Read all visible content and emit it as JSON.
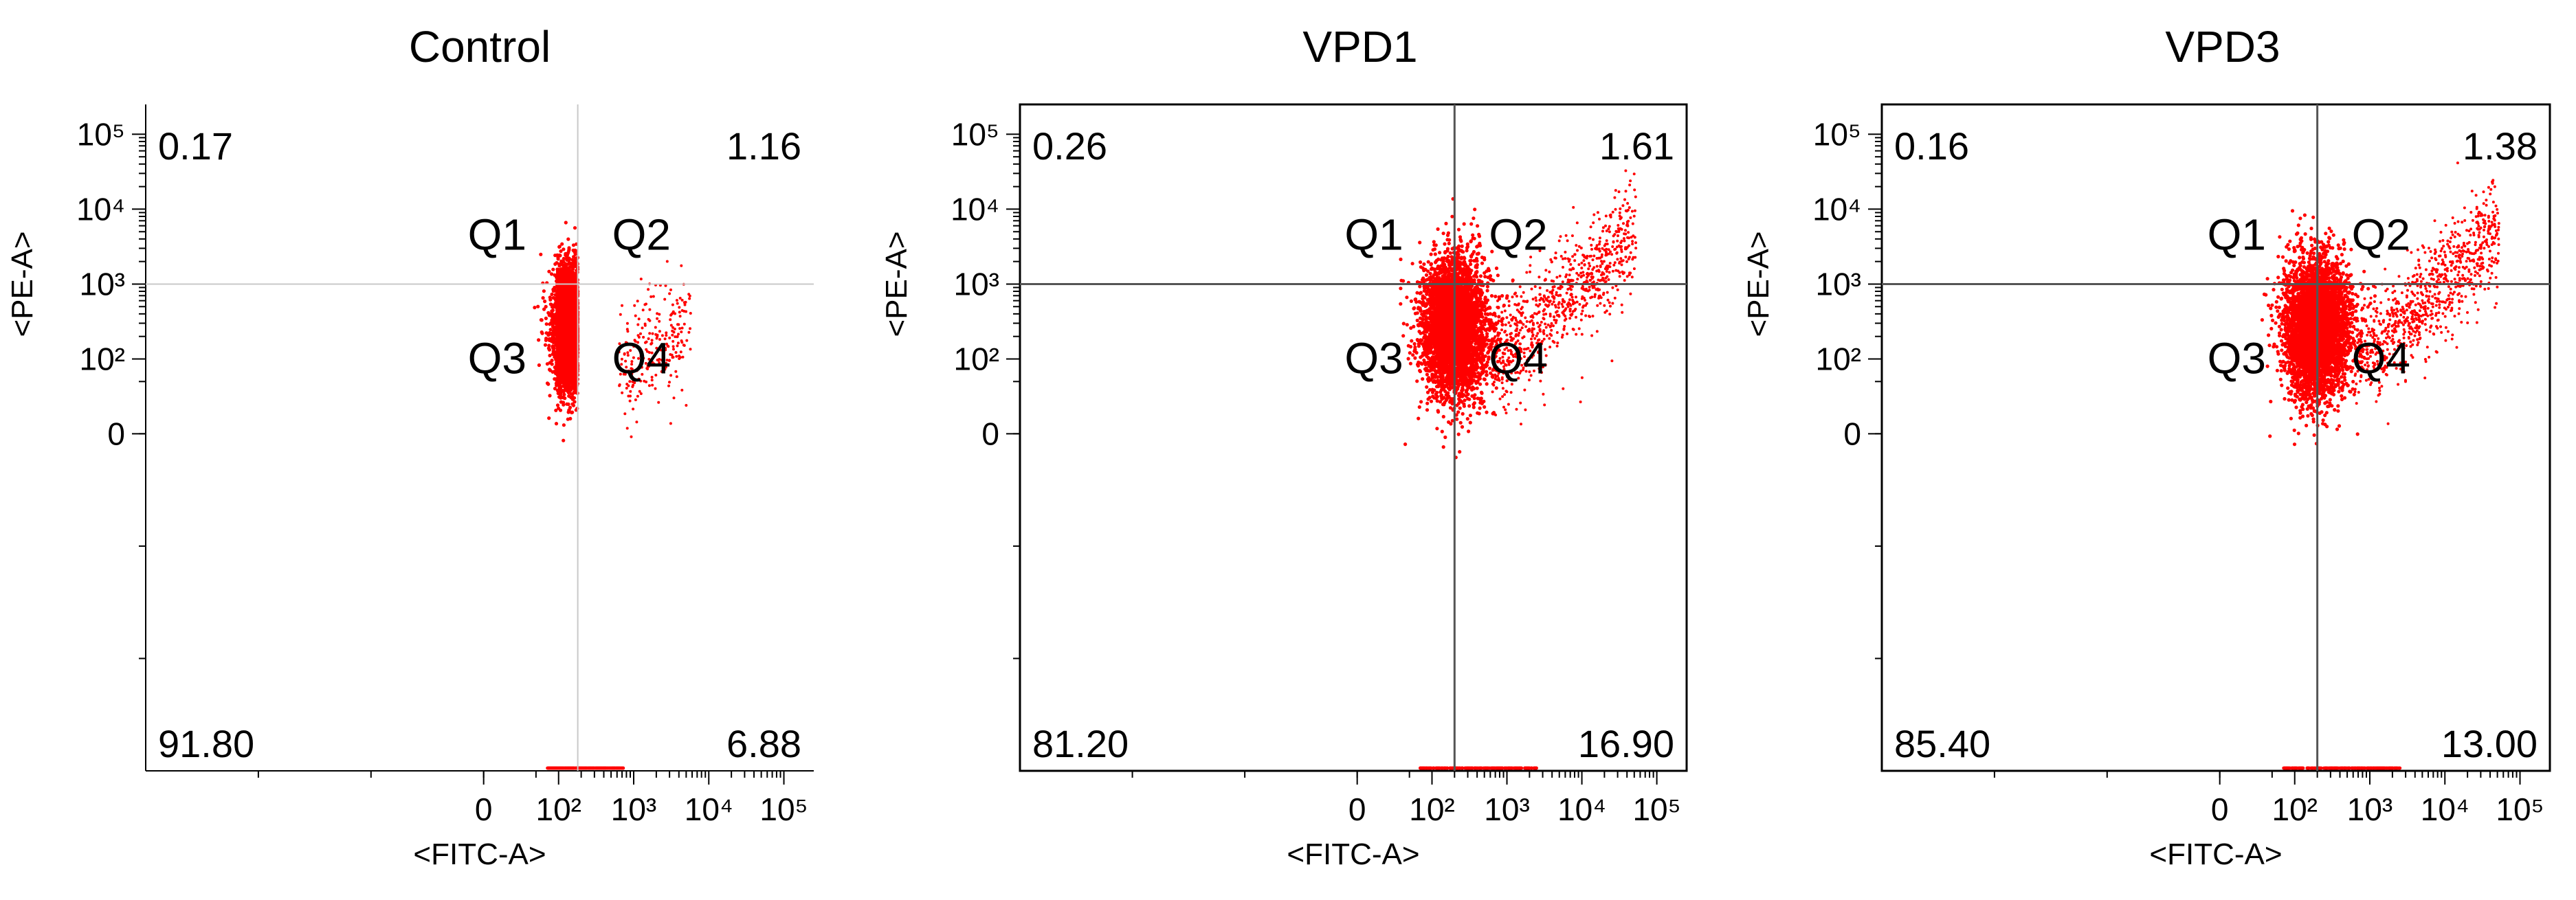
{
  "chart_data": [
    {
      "type": "scatter",
      "title": "Control",
      "xlabel": "<FITC-A>",
      "ylabel": "<PE-A>",
      "x_scale": "biexponential",
      "y_scale": "biexponential",
      "xlim": [
        -300,
        250000
      ],
      "ylim": [
        -300,
        250000
      ],
      "x_ticks": [
        "0",
        "10²",
        "10³",
        "10⁴",
        "10⁵"
      ],
      "y_ticks": [
        "0",
        "10²",
        "10³",
        "10⁴",
        "10⁵"
      ],
      "gate": {
        "x": 180,
        "y": 1000
      },
      "quadrant_labels": [
        "Q1",
        "Q2",
        "Q3",
        "Q4"
      ],
      "quadrants": {
        "Q1": "0.17",
        "Q2": "1.16",
        "Q3": "91.80",
        "Q4": "6.88"
      },
      "point_color": "#ff0000",
      "gate_color": "#c8c8c8",
      "frame": false
    },
    {
      "type": "scatter",
      "title": "VPD1",
      "xlabel": "<FITC-A>",
      "ylabel": "<PE-A>",
      "x_scale": "biexponential",
      "y_scale": "biexponential",
      "xlim": [
        -300,
        250000
      ],
      "ylim": [
        -300,
        250000
      ],
      "x_ticks": [
        "0",
        "10²",
        "10³",
        "10⁴",
        "10⁵"
      ],
      "y_ticks": [
        "0",
        "10²",
        "10³",
        "10⁴",
        "10⁵"
      ],
      "gate": {
        "x": 200,
        "y": 1000
      },
      "quadrant_labels": [
        "Q1",
        "Q2",
        "Q3",
        "Q4"
      ],
      "quadrants": {
        "Q1": "0.26",
        "Q2": "1.61",
        "Q3": "81.20",
        "Q4": "16.90"
      },
      "point_color": "#ff0000",
      "gate_color": "#555555",
      "frame": true
    },
    {
      "type": "scatter",
      "title": "VPD3",
      "xlabel": "<FITC-A>",
      "ylabel": "<PE-A>",
      "x_scale": "biexponential",
      "y_scale": "biexponential",
      "xlim": [
        -300,
        250000
      ],
      "ylim": [
        -300,
        250000
      ],
      "x_ticks": [
        "0",
        "10²",
        "10³",
        "10⁴",
        "10⁵"
      ],
      "y_ticks": [
        "0",
        "10²",
        "10³",
        "10⁴",
        "10⁵"
      ],
      "gate": {
        "x": 200,
        "y": 1000
      },
      "quadrant_labels": [
        "Q1",
        "Q2",
        "Q3",
        "Q4"
      ],
      "quadrants": {
        "Q1": "0.16",
        "Q2": "1.38",
        "Q3": "85.40",
        "Q4": "13.00"
      },
      "point_color": "#ff0000",
      "gate_color": "#555555",
      "frame": true
    }
  ]
}
